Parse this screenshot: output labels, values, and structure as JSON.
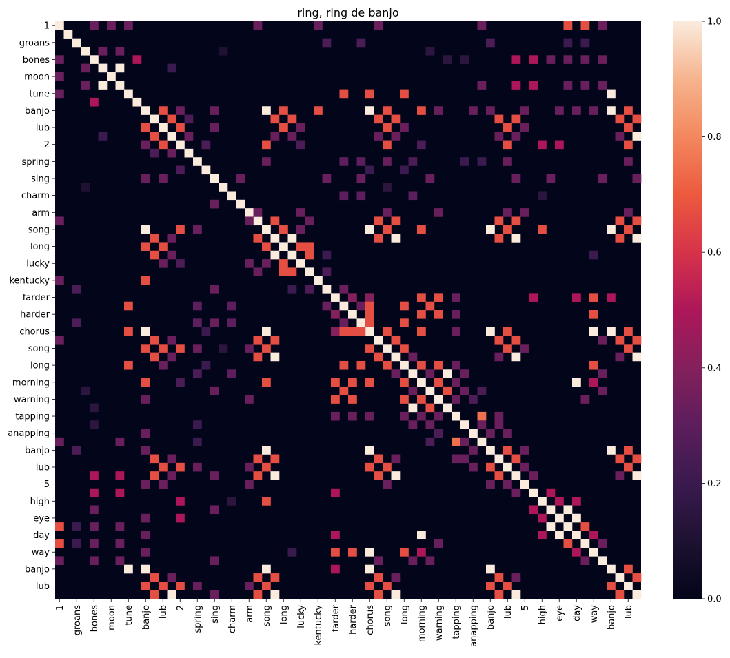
{
  "chart_data": {
    "type": "heatmap",
    "title": "ring, ring de banjo",
    "value_range": [
      0.0,
      1.0
    ],
    "colormap": "rocket",
    "tick_labels": [
      "1",
      "groans",
      "bones",
      "moon",
      "tune",
      "banjo",
      "lub",
      "2",
      "spring",
      "sing",
      "charm",
      "arm",
      "song",
      "long",
      "lucky",
      "kentucky",
      "farder",
      "harder",
      "chorus",
      "song",
      "long",
      "morning",
      "warning",
      "tapping",
      "anapping",
      "banjo",
      "lub",
      "5",
      "high",
      "eye",
      "day",
      "way",
      "banjo",
      "lub"
    ],
    "tick_label_rows": [
      0,
      2,
      4,
      6,
      8,
      10,
      12,
      14,
      16,
      18,
      20,
      22,
      24,
      26,
      28,
      30,
      32,
      34,
      36,
      38,
      40,
      42,
      44,
      46,
      48,
      50,
      52,
      54,
      56,
      58,
      60,
      62,
      64,
      66
    ],
    "colorbar_ticks": [
      "0.0",
      "0.2",
      "0.4",
      "0.6",
      "0.8",
      "1.0"
    ],
    "colorbar_tick_values": [
      0.0,
      0.2,
      0.4,
      0.6,
      0.8,
      1.0
    ],
    "n": 68,
    "cells": [
      [
        0,
        4,
        0.33
      ],
      [
        0,
        6,
        0.33
      ],
      [
        0,
        8,
        0.33
      ],
      [
        0,
        23,
        0.33
      ],
      [
        0,
        30,
        0.33
      ],
      [
        0,
        37,
        0.33
      ],
      [
        0,
        49,
        0.33
      ],
      [
        0,
        59,
        0.67
      ],
      [
        0,
        61,
        0.67
      ],
      [
        0,
        63,
        0.33
      ],
      [
        2,
        50,
        0.25
      ],
      [
        2,
        59,
        0.2
      ],
      [
        2,
        61,
        0.2
      ],
      [
        2,
        31,
        0.25
      ],
      [
        2,
        35,
        0.25
      ],
      [
        3,
        5,
        0.33
      ],
      [
        3,
        7,
        0.33
      ],
      [
        3,
        19,
        0.1
      ],
      [
        3,
        43,
        0.15
      ],
      [
        4,
        9,
        0.5
      ],
      [
        4,
        53,
        0.5
      ],
      [
        4,
        55,
        0.5
      ],
      [
        4,
        57,
        0.33
      ],
      [
        4,
        59,
        0.33
      ],
      [
        4,
        61,
        0.33
      ],
      [
        4,
        63,
        0.33
      ],
      [
        4,
        45,
        0.15
      ],
      [
        4,
        47,
        0.15
      ],
      [
        5,
        7,
        1.0
      ],
      [
        5,
        13,
        0.2
      ],
      [
        7,
        49,
        0.33
      ],
      [
        7,
        53,
        0.5
      ],
      [
        7,
        55,
        0.5
      ],
      [
        7,
        59,
        0.33
      ],
      [
        7,
        61,
        0.33
      ],
      [
        7,
        63,
        0.33
      ],
      [
        8,
        33,
        0.67
      ],
      [
        8,
        36,
        0.67
      ],
      [
        8,
        40,
        0.67
      ],
      [
        8,
        64,
        1.0
      ],
      [
        10,
        12,
        0.67
      ],
      [
        10,
        14,
        0.33
      ],
      [
        10,
        18,
        0.33
      ],
      [
        10,
        24,
        1.0
      ],
      [
        10,
        26,
        0.67
      ],
      [
        10,
        30,
        0.67
      ],
      [
        10,
        36,
        1.0
      ],
      [
        10,
        38,
        0.67
      ],
      [
        10,
        42,
        0.67
      ],
      [
        10,
        44,
        0.33
      ],
      [
        10,
        48,
        0.33
      ],
      [
        10,
        50,
        0.33
      ],
      [
        10,
        54,
        0.33
      ],
      [
        10,
        58,
        0.33
      ],
      [
        10,
        60,
        0.33
      ],
      [
        10,
        62,
        0.33
      ],
      [
        10,
        64,
        1.0
      ],
      [
        10,
        66,
        0.67
      ],
      [
        11,
        13,
        0.67
      ],
      [
        11,
        15,
        0.25
      ],
      [
        11,
        25,
        0.67
      ],
      [
        11,
        27,
        0.67
      ],
      [
        11,
        37,
        0.67
      ],
      [
        11,
        39,
        0.67
      ],
      [
        11,
        51,
        0.67
      ],
      [
        11,
        53,
        0.67
      ],
      [
        11,
        65,
        0.67
      ],
      [
        11,
        67,
        0.67
      ],
      [
        12,
        14,
        0.67
      ],
      [
        12,
        18,
        0.33
      ],
      [
        12,
        26,
        0.67
      ],
      [
        12,
        28,
        0.33
      ],
      [
        12,
        38,
        0.67
      ],
      [
        12,
        40,
        0.33
      ],
      [
        12,
        52,
        0.67
      ],
      [
        12,
        54,
        0.33
      ],
      [
        12,
        66,
        0.67
      ],
      [
        13,
        15,
        0.33
      ],
      [
        13,
        25,
        0.33
      ],
      [
        13,
        27,
        0.33
      ],
      [
        13,
        37,
        0.33
      ],
      [
        13,
        39,
        0.33
      ],
      [
        13,
        51,
        0.33
      ],
      [
        13,
        53,
        0.33
      ],
      [
        13,
        65,
        0.33
      ],
      [
        13,
        67,
        1.0
      ],
      [
        14,
        17,
        0.25
      ],
      [
        14,
        24,
        0.67
      ],
      [
        14,
        28,
        0.25
      ],
      [
        14,
        38,
        0.67
      ],
      [
        14,
        42,
        0.25
      ],
      [
        14,
        52,
        0.67
      ],
      [
        14,
        56,
        0.5
      ],
      [
        14,
        58,
        0.5
      ],
      [
        14,
        66,
        0.67
      ],
      [
        16,
        24,
        0.33
      ],
      [
        16,
        33,
        0.3
      ],
      [
        16,
        35,
        0.3
      ],
      [
        16,
        38,
        0.33
      ],
      [
        16,
        41,
        0.25
      ],
      [
        16,
        47,
        0.2
      ],
      [
        16,
        49,
        0.2
      ],
      [
        16,
        52,
        0.33
      ],
      [
        16,
        66,
        0.33
      ],
      [
        17,
        36,
        0.2
      ],
      [
        17,
        40,
        0.2
      ],
      [
        18,
        21,
        0.33
      ],
      [
        18,
        31,
        0.33
      ],
      [
        18,
        35,
        0.33
      ],
      [
        18,
        43,
        0.33
      ],
      [
        18,
        53,
        0.33
      ],
      [
        18,
        57,
        0.33
      ],
      [
        18,
        63,
        0.33
      ],
      [
        18,
        67,
        0.33
      ],
      [
        19,
        38,
        0.15
      ],
      [
        20,
        33,
        0.3
      ],
      [
        20,
        35,
        0.3
      ],
      [
        20,
        41,
        0.3
      ],
      [
        20,
        56,
        0.15
      ],
      [
        22,
        23,
        0.33
      ],
      [
        22,
        28,
        0.33
      ],
      [
        22,
        38,
        0.33
      ],
      [
        22,
        44,
        0.33
      ],
      [
        22,
        52,
        0.33
      ],
      [
        22,
        54,
        0.33
      ],
      [
        22,
        66,
        0.33
      ],
      [
        23,
        25,
        0.67
      ],
      [
        23,
        29,
        0.33
      ],
      [
        23,
        37,
        0.67
      ],
      [
        23,
        39,
        0.67
      ],
      [
        23,
        51,
        0.67
      ],
      [
        23,
        53,
        0.67
      ],
      [
        23,
        65,
        0.67
      ],
      [
        23,
        67,
        0.67
      ],
      [
        24,
        26,
        0.67
      ],
      [
        24,
        28,
        0.33
      ],
      [
        24,
        36,
        1.0
      ],
      [
        24,
        38,
        0.67
      ],
      [
        24,
        42,
        0.67
      ],
      [
        24,
        50,
        1.0
      ],
      [
        24,
        52,
        0.67
      ],
      [
        24,
        56,
        0.67
      ],
      [
        24,
        64,
        1.0
      ],
      [
        24,
        66,
        0.67
      ],
      [
        25,
        27,
        1.0
      ],
      [
        25,
        37,
        0.67
      ],
      [
        25,
        39,
        1.0
      ],
      [
        25,
        51,
        0.67
      ],
      [
        25,
        53,
        1.0
      ],
      [
        25,
        65,
        0.67
      ],
      [
        25,
        67,
        1.0
      ],
      [
        26,
        28,
        0.67
      ],
      [
        26,
        29,
        0.67
      ],
      [
        27,
        29,
        0.67
      ],
      [
        27,
        31,
        0.2
      ],
      [
        27,
        62,
        0.2
      ],
      [
        29,
        31,
        0.25
      ],
      [
        31,
        33,
        0.33
      ],
      [
        32,
        34,
        0.4
      ],
      [
        32,
        36,
        0.4
      ],
      [
        32,
        42,
        0.67
      ],
      [
        32,
        44,
        0.67
      ],
      [
        32,
        46,
        0.33
      ],
      [
        32,
        55,
        0.5
      ],
      [
        32,
        62,
        0.67
      ],
      [
        32,
        64,
        0.5
      ],
      [
        32,
        60,
        0.5
      ],
      [
        33,
        35,
        0.33
      ],
      [
        33,
        36,
        0.67
      ],
      [
        33,
        40,
        0.67
      ],
      [
        33,
        43,
        0.67
      ],
      [
        34,
        36,
        0.67
      ],
      [
        34,
        42,
        0.67
      ],
      [
        34,
        44,
        0.67
      ],
      [
        34,
        46,
        0.33
      ],
      [
        34,
        62,
        0.67
      ],
      [
        35,
        36,
        0.67
      ],
      [
        35,
        40,
        0.67
      ],
      [
        36,
        38,
        0.67
      ],
      [
        36,
        42,
        0.67
      ],
      [
        36,
        46,
        0.33
      ],
      [
        36,
        50,
        1.0
      ],
      [
        36,
        52,
        0.67
      ],
      [
        36,
        62,
        1.0
      ],
      [
        36,
        64,
        1.0
      ],
      [
        36,
        66,
        0.67
      ],
      [
        37,
        39,
        0.67
      ],
      [
        37,
        51,
        0.67
      ],
      [
        37,
        53,
        0.67
      ],
      [
        37,
        63,
        0.33
      ],
      [
        37,
        65,
        0.67
      ],
      [
        37,
        67,
        0.67
      ],
      [
        38,
        40,
        0.67
      ],
      [
        38,
        52,
        0.67
      ],
      [
        38,
        54,
        0.33
      ],
      [
        38,
        66,
        0.67
      ],
      [
        39,
        41,
        0.33
      ],
      [
        39,
        51,
        0.33
      ],
      [
        39,
        53,
        1.0
      ],
      [
        39,
        65,
        0.33
      ],
      [
        39,
        67,
        1.0
      ],
      [
        40,
        42,
        0.67
      ],
      [
        40,
        44,
        0.67
      ],
      [
        40,
        46,
        0.33
      ],
      [
        40,
        62,
        0.67
      ],
      [
        41,
        43,
        0.33
      ],
      [
        41,
        45,
        1.0
      ],
      [
        41,
        47,
        0.33
      ],
      [
        41,
        63,
        0.33
      ],
      [
        42,
        44,
        0.67
      ],
      [
        42,
        46,
        0.33
      ],
      [
        42,
        60,
        1.0
      ],
      [
        42,
        62,
        0.5
      ],
      [
        43,
        45,
        0.67
      ],
      [
        43,
        47,
        0.33
      ],
      [
        43,
        49,
        0.25
      ],
      [
        43,
        63,
        0.33
      ],
      [
        44,
        46,
        0.33
      ],
      [
        44,
        48,
        0.25
      ],
      [
        44,
        61,
        0.33
      ],
      [
        46,
        49,
        0.75
      ],
      [
        46,
        51,
        0.33
      ],
      [
        47,
        49,
        0.33
      ],
      [
        47,
        51,
        0.33
      ],
      [
        48,
        50,
        0.33
      ],
      [
        48,
        52,
        0.33
      ],
      [
        50,
        52,
        0.67
      ],
      [
        50,
        54,
        0.33
      ],
      [
        50,
        64,
        1.0
      ],
      [
        50,
        66,
        0.67
      ],
      [
        51,
        53,
        0.67
      ],
      [
        51,
        65,
        0.67
      ],
      [
        51,
        67,
        0.67
      ],
      [
        52,
        54,
        0.33
      ],
      [
        52,
        66,
        0.67
      ],
      [
        53,
        55,
        0.33
      ],
      [
        53,
        65,
        0.33
      ],
      [
        53,
        67,
        1.0
      ],
      [
        55,
        57,
        0.5
      ],
      [
        56,
        58,
        0.5
      ],
      [
        56,
        60,
        0.5
      ],
      [
        57,
        59,
        1.0
      ],
      [
        58,
        60,
        1.0
      ],
      [
        59,
        61,
        0.67
      ],
      [
        60,
        62,
        0.5
      ],
      [
        61,
        63,
        0.33
      ],
      [
        64,
        66,
        0.67
      ],
      [
        65,
        67,
        0.67
      ]
    ]
  }
}
